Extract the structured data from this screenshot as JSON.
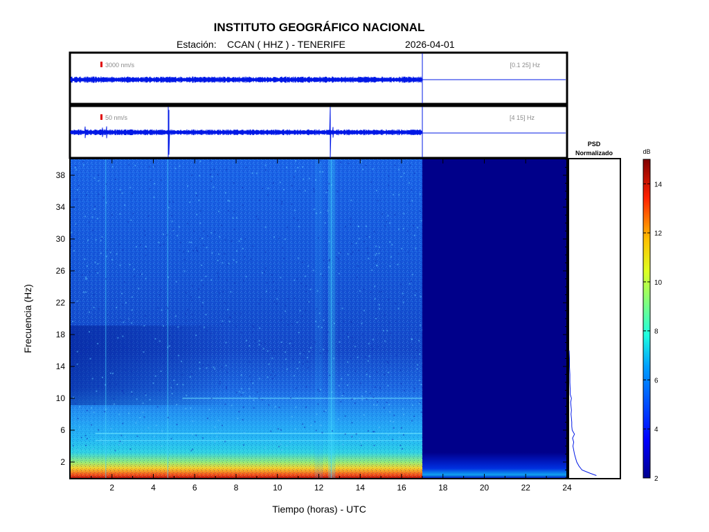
{
  "header": {
    "title": "INSTITUTO GEOGRÁFICO NACIONAL",
    "station_label": "Estación:",
    "station": "CCAN ( HHZ ) - TENERIFE",
    "date": "2026-04-01"
  },
  "colors": {
    "trace": "#0018e6",
    "scale_marker": "#e00000",
    "frame": "#000000",
    "no_data": "#00007f",
    "panel_label": "#8a8a8a"
  },
  "chart_data": [
    {
      "type": "line",
      "name": "trace-broadband",
      "scale_label": "3000 nm/s",
      "band_label": "[0.1 25] Hz",
      "xlim": [
        0,
        24
      ],
      "data_end_hour": 17,
      "events": [
        {
          "x": 11.5,
          "amp": 0.55
        }
      ]
    },
    {
      "type": "line",
      "name": "trace-filtered",
      "scale_label": "50 nm/s",
      "band_label": "[4 15] Hz",
      "xlim": [
        0,
        24
      ],
      "data_end_hour": 17,
      "events": [
        {
          "x": 0.7,
          "amp": 0.28
        },
        {
          "x": 1.55,
          "amp": 0.35
        },
        {
          "x": 1.75,
          "amp": 0.42
        },
        {
          "x": 2.0,
          "amp": 0.12
        },
        {
          "x": 3.7,
          "amp": 0.12
        },
        {
          "x": 4.75,
          "amp": 1.1
        },
        {
          "x": 12.55,
          "amp": 1.2
        },
        {
          "x": 12.7,
          "amp": 0.55
        },
        {
          "x": 16.0,
          "amp": 0.12
        }
      ]
    },
    {
      "type": "heatmap",
      "name": "spectrogram",
      "xlabel": "Tiempo (horas) - UTC",
      "ylabel": "Frecuencia  (Hz)",
      "xlim": [
        0,
        24
      ],
      "ylim": [
        0,
        40
      ],
      "x_ticks": [
        "2",
        "4",
        "6",
        "8",
        "10",
        "12",
        "14",
        "16",
        "18",
        "20",
        "22",
        "24"
      ],
      "y_ticks": [
        "2",
        "6",
        "10",
        "14",
        "18",
        "22",
        "26",
        "30",
        "34",
        "38"
      ],
      "data_end_hour": 17,
      "colorbar": {
        "title": "dB",
        "range": [
          2,
          15
        ],
        "ticks": [
          "2",
          "4",
          "6",
          "8",
          "10",
          "12",
          "14"
        ]
      },
      "vertical_events": [
        1.7,
        4.7,
        12.6
      ],
      "horizontal_lines": [
        10.0,
        5.6,
        4.7
      ]
    },
    {
      "type": "line",
      "name": "psd-normalized",
      "title": "PSD\nNormalizado",
      "ylim": [
        0,
        40
      ],
      "xlim": [
        0,
        1
      ],
      "freq": [
        0.3,
        0.6,
        1.0,
        1.5,
        2.0,
        2.5,
        3.0,
        3.5,
        4.0,
        4.5,
        5.0,
        5.5,
        6.0,
        6.5,
        7.0,
        7.5,
        8.0,
        8.5,
        9.0,
        9.5,
        10.0,
        10.5,
        11.0,
        12.0,
        13.0,
        14.0,
        15.0,
        16.0
      ],
      "power": [
        0.72,
        0.55,
        0.34,
        0.26,
        0.2,
        0.17,
        0.14,
        0.12,
        0.1,
        0.12,
        0.09,
        0.14,
        0.08,
        0.07,
        0.07,
        0.06,
        0.05,
        0.06,
        0.05,
        0.04,
        0.06,
        0.03,
        0.03,
        0.02,
        0.02,
        0.01,
        0.01,
        0.0
      ]
    }
  ]
}
